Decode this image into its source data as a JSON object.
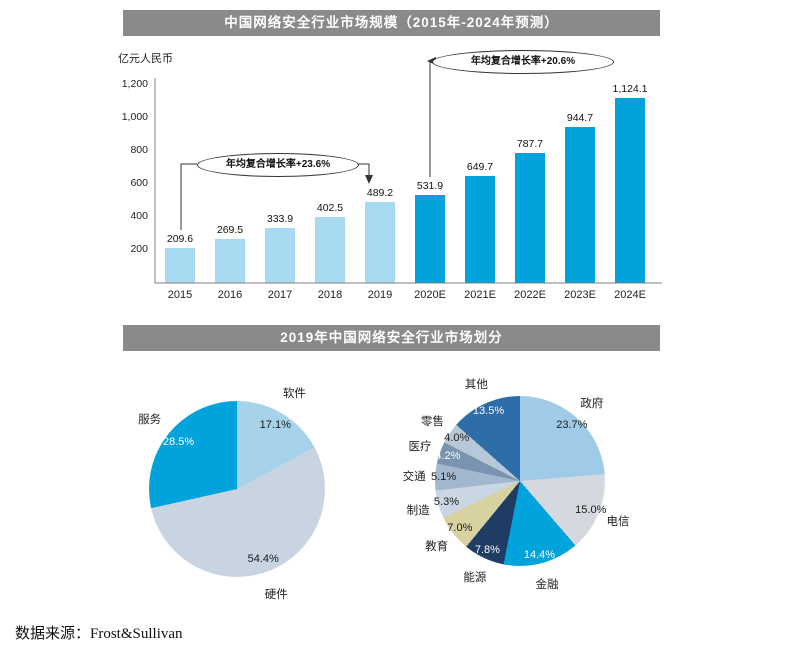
{
  "source_note": "数据来源：Frost&Sullivan",
  "styles": {
    "header_bg": "#8A8A8A",
    "axis_color": "#7f7f7f",
    "historical_bar_color": "#A7D9F0",
    "forecast_bar_color": "#00A3DC"
  },
  "pie_section": {
    "title": "2019年中国网络安全行业市场划分"
  },
  "chart_data": [
    {
      "type": "bar",
      "title": "中国网络安全行业市场规模（2015年-2024年预测）",
      "unit_label": "亿元人民币",
      "categories": [
        "2015",
        "2016",
        "2017",
        "2018",
        "2019",
        "2020E",
        "2021E",
        "2022E",
        "2023E",
        "2024E"
      ],
      "values": [
        209.6,
        269.5,
        333.9,
        402.5,
        489.2,
        531.9,
        649.7,
        787.7,
        944.7,
        1124.1
      ],
      "value_labels": [
        "209.6",
        "269.5",
        "333.9",
        "402.5",
        "489.2",
        "531.9",
        "649.7",
        "787.7",
        "944.7",
        "1,124.1"
      ],
      "bar_colors": [
        "#A7D9F0",
        "#A7D9F0",
        "#A7D9F0",
        "#A7D9F0",
        "#A7D9F0",
        "#00A3DC",
        "#00A3DC",
        "#00A3DC",
        "#00A3DC",
        "#00A3DC"
      ],
      "ylim": [
        0,
        1200
      ],
      "yticks": [
        200,
        400,
        600,
        800,
        1000,
        1200
      ],
      "ytick_labels": [
        "200",
        "400",
        "600",
        "800",
        "1,000",
        "1,200"
      ],
      "grid": false,
      "legend": false,
      "annotations": [
        {
          "text": "年均复合增长率+23.6%",
          "span": "2015-2019"
        },
        {
          "text": "年均复合增长率+20.6%",
          "span": "2020E-2024E"
        }
      ]
    },
    {
      "type": "pie",
      "name": "product-split",
      "slices": [
        {
          "label": "软件",
          "value": 17.1,
          "pct_label": "17.1%",
          "color": "#A6D2EA",
          "pct_color": "#1a1a1a"
        },
        {
          "label": "硬件",
          "value": 54.4,
          "pct_label": "54.4%",
          "color": "#C8D4E1",
          "pct_color": "#1a1a1a"
        },
        {
          "label": "服务",
          "value": 28.5,
          "pct_label": "28.5%",
          "color": "#00A3DC",
          "pct_color": "#ffffff"
        }
      ]
    },
    {
      "type": "pie",
      "name": "industry-split",
      "slices": [
        {
          "label": "政府",
          "value": 23.7,
          "pct_label": "23.7%",
          "color": "#9FCBE8",
          "pct_color": "#1a1a1a"
        },
        {
          "label": "电信",
          "value": 15.0,
          "pct_label": "15.0%",
          "color": "#D4D9DF",
          "pct_color": "#1a1a1a"
        },
        {
          "label": "金融",
          "value": 14.4,
          "pct_label": "14.4%",
          "color": "#00A3DC",
          "pct_color": "#ffffff"
        },
        {
          "label": "能源",
          "value": 7.8,
          "pct_label": "7.8%",
          "color": "#1E3C64",
          "pct_color": "#ffffff"
        },
        {
          "label": "教育",
          "value": 7.0,
          "pct_label": "7.0%",
          "color": "#D8D1A0",
          "pct_color": "#1a1a1a"
        },
        {
          "label": "制造",
          "value": 5.3,
          "pct_label": "5.3%",
          "color": "#CAD6E4",
          "pct_color": "#1a1a1a"
        },
        {
          "label": "交通",
          "value": 5.1,
          "pct_label": "5.1%",
          "color": "#A3B8CF",
          "pct_color": "#1a1a1a"
        },
        {
          "label": "医疗",
          "value": 4.2,
          "pct_label": "4.2%",
          "color": "#7A93B0",
          "pct_color": "#ffffff"
        },
        {
          "label": "零售",
          "value": 4.0,
          "pct_label": "4.0%",
          "color": "#B9C8D9",
          "pct_color": "#1a1a1a"
        },
        {
          "label": "其他",
          "value": 13.5,
          "pct_label": "13.5%",
          "color": "#2D6DA8",
          "pct_color": "#ffffff"
        }
      ]
    }
  ]
}
